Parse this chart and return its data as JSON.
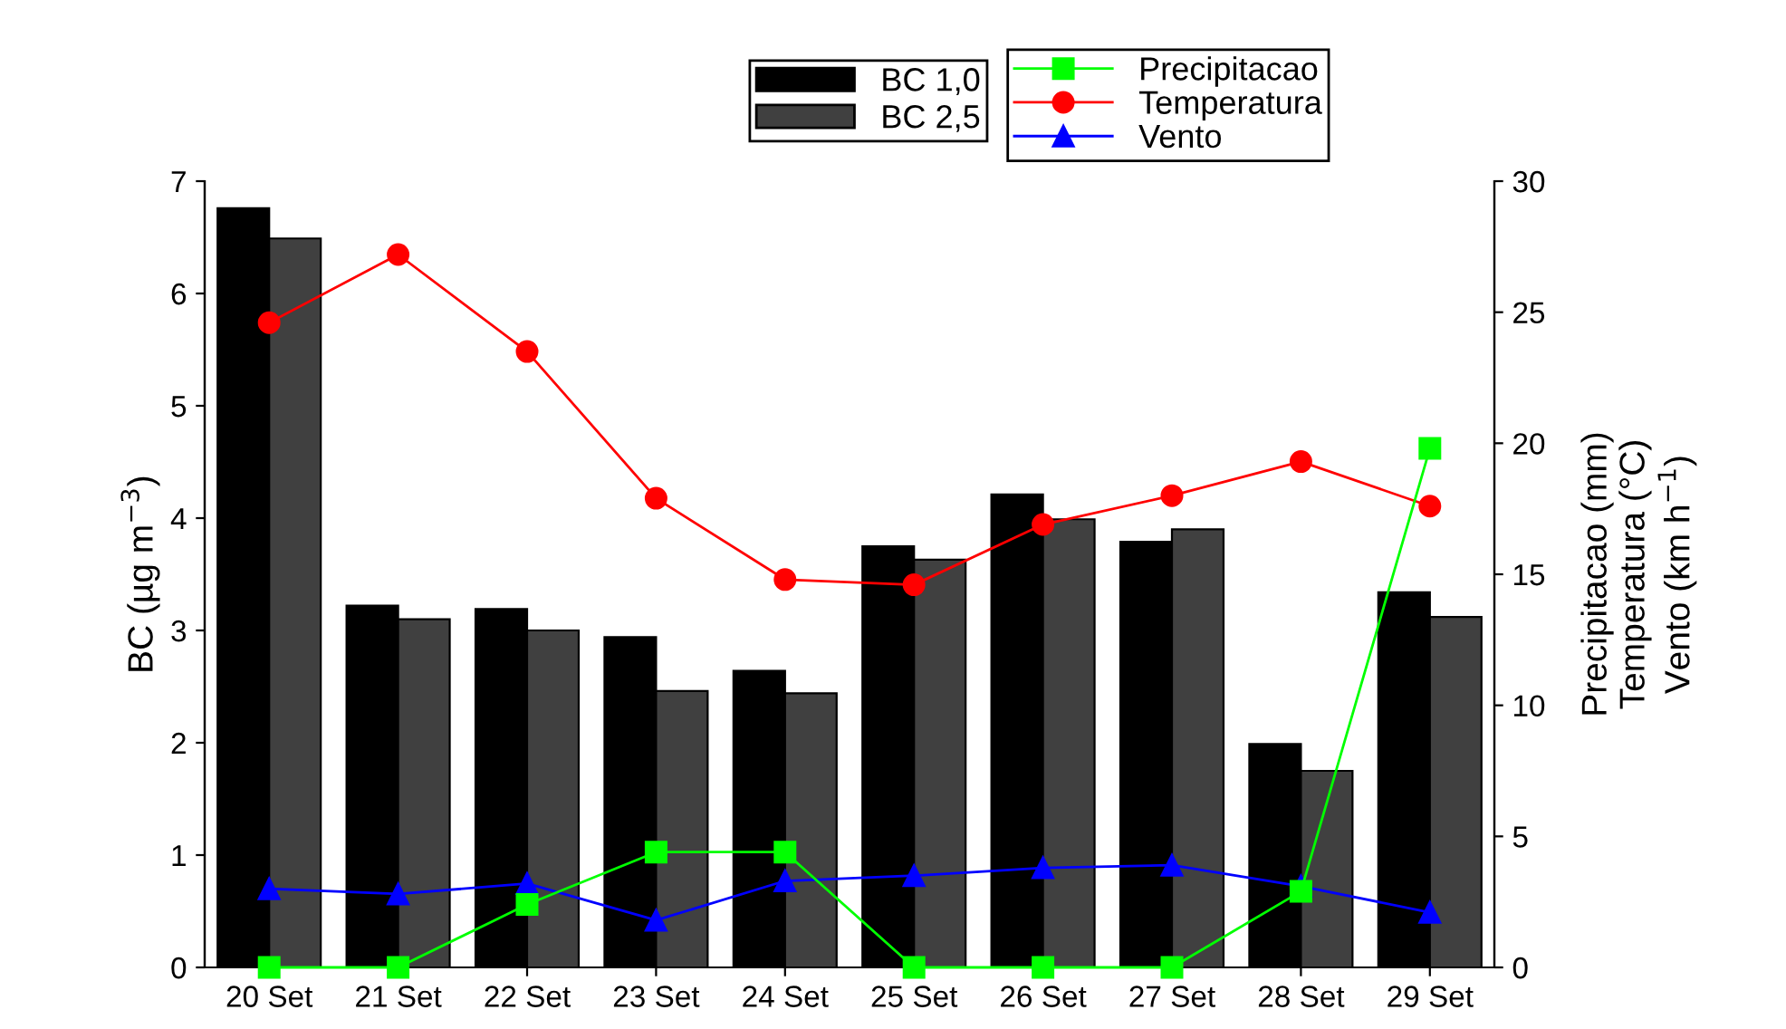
{
  "chart_data": {
    "type": "bar",
    "categories": [
      "20 Set",
      "21 Set",
      "22 Set",
      "23 Set",
      "24 Set",
      "25 Set",
      "26 Set",
      "27 Set",
      "28 Set",
      "29 Set"
    ],
    "ylabel": "BC (µg m$^{−3}$)",
    "y2label": "Precipitacao (mm)\nTemperatura (°C)\nVento (km h$^{−1}$)",
    "series": [
      {
        "name": "BC 1,0",
        "color": "#000000",
        "values": [
          6.76,
          3.22,
          3.19,
          2.94,
          2.64,
          3.75,
          4.21,
          3.79,
          1.99,
          3.34
        ]
      },
      {
        "name": "BC 2,5",
        "color": "#404040",
        "values": [
          6.49,
          3.1,
          3.0,
          2.46,
          2.44,
          3.63,
          3.99,
          3.9,
          1.75,
          3.12
        ]
      },
      {
        "name": "Precipitacao",
        "type": "line",
        "axis": "y2",
        "marker": "square",
        "color": "#00ff00",
        "values": [
          0,
          0,
          2.4,
          4.4,
          4.4,
          0,
          0,
          0,
          2.9,
          19.8
        ]
      },
      {
        "name": "Temperatura",
        "type": "line",
        "axis": "y2",
        "marker": "circle",
        "color": "#ff0000",
        "values": [
          24.6,
          27.2,
          23.5,
          17.9,
          14.8,
          14.6,
          16.9,
          18.0,
          19.3,
          17.6
        ]
      },
      {
        "name": "Vento",
        "type": "line",
        "axis": "y2",
        "marker": "triangle",
        "color": "#0000ff",
        "values": [
          3.0,
          2.8,
          3.2,
          1.8,
          3.3,
          3.5,
          3.8,
          3.9,
          3.1,
          2.1
        ]
      }
    ],
    "ylim": [
      0,
      7
    ],
    "yticks": [
      0,
      1,
      2,
      3,
      4,
      5,
      6,
      7
    ],
    "y2lim": [
      0,
      30
    ],
    "y2ticks": [
      0,
      5,
      10,
      15,
      20,
      25,
      30
    ],
    "grid": false,
    "legend": "top"
  }
}
